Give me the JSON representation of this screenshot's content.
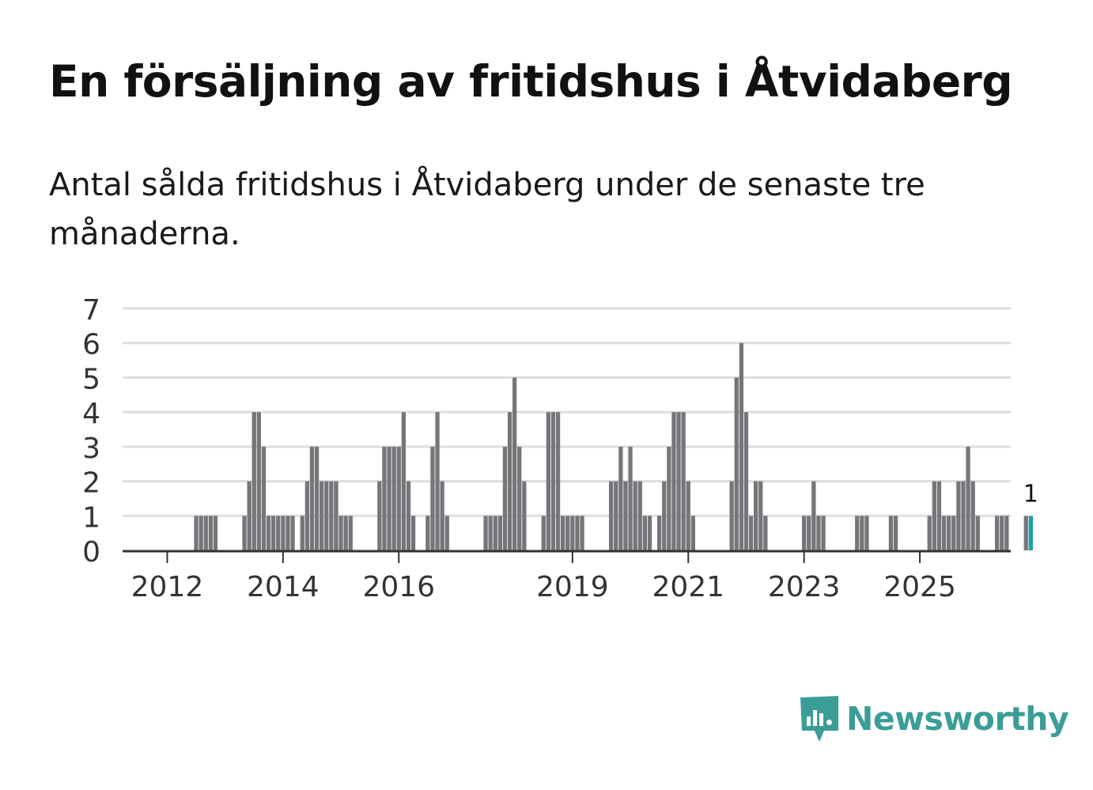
{
  "title": "En försäljning av fritidshus i Åtvidaberg",
  "subtitle": "Antal sålda fritidshus i Åtvidaberg under de senaste tre månaderna.",
  "brand": "Newsworthy",
  "colors": {
    "bar": "#76767a",
    "highlight": "#16a5a2",
    "grid": "#dddddd",
    "axis": "#333333",
    "brand": "#3a9d98"
  },
  "chart_data": {
    "type": "bar",
    "title": "En försäljning av fritidshus i Åtvidaberg",
    "xlabel": "",
    "ylabel": "",
    "ylim": [
      0,
      7
    ],
    "yticks": [
      "0",
      "1",
      "2",
      "3",
      "4",
      "5",
      "6",
      "7"
    ],
    "xticks": [
      "2012",
      "2014",
      "2016",
      "2019",
      "2021",
      "2023",
      "2025"
    ],
    "start": "2011-05",
    "frequency": "monthly",
    "values": [
      0,
      0,
      0,
      0,
      0,
      0,
      0,
      0,
      0,
      0,
      0,
      0,
      0,
      0,
      1,
      1,
      1,
      1,
      1,
      0,
      0,
      0,
      0,
      0,
      1,
      2,
      4,
      4,
      3,
      1,
      1,
      1,
      1,
      1,
      1,
      0,
      1,
      2,
      3,
      3,
      2,
      2,
      2,
      2,
      1,
      1,
      1,
      0,
      0,
      0,
      0,
      0,
      2,
      3,
      3,
      3,
      3,
      4,
      2,
      1,
      0,
      0,
      1,
      3,
      4,
      2,
      1,
      0,
      0,
      0,
      0,
      0,
      0,
      0,
      1,
      1,
      1,
      1,
      3,
      4,
      5,
      3,
      2,
      0,
      0,
      0,
      1,
      4,
      4,
      4,
      1,
      1,
      1,
      1,
      1,
      0,
      0,
      0,
      0,
      0,
      2,
      2,
      3,
      2,
      3,
      2,
      2,
      1,
      1,
      0,
      1,
      2,
      3,
      4,
      4,
      4,
      2,
      1,
      0,
      0,
      0,
      0,
      0,
      0,
      0,
      2,
      5,
      6,
      4,
      1,
      2,
      2,
      1,
      0,
      0,
      0,
      0,
      0,
      0,
      0,
      1,
      1,
      2,
      1,
      1,
      0,
      0,
      0,
      0,
      0,
      0,
      1,
      1,
      1,
      0,
      0,
      0,
      0,
      1,
      1,
      0,
      0,
      0,
      0,
      0,
      0,
      1,
      2,
      2,
      1,
      1,
      1,
      2,
      2,
      3,
      2,
      1,
      0,
      0,
      0,
      1,
      1,
      1,
      0,
      0,
      0,
      1,
      1
    ],
    "highlight_label": "1"
  }
}
